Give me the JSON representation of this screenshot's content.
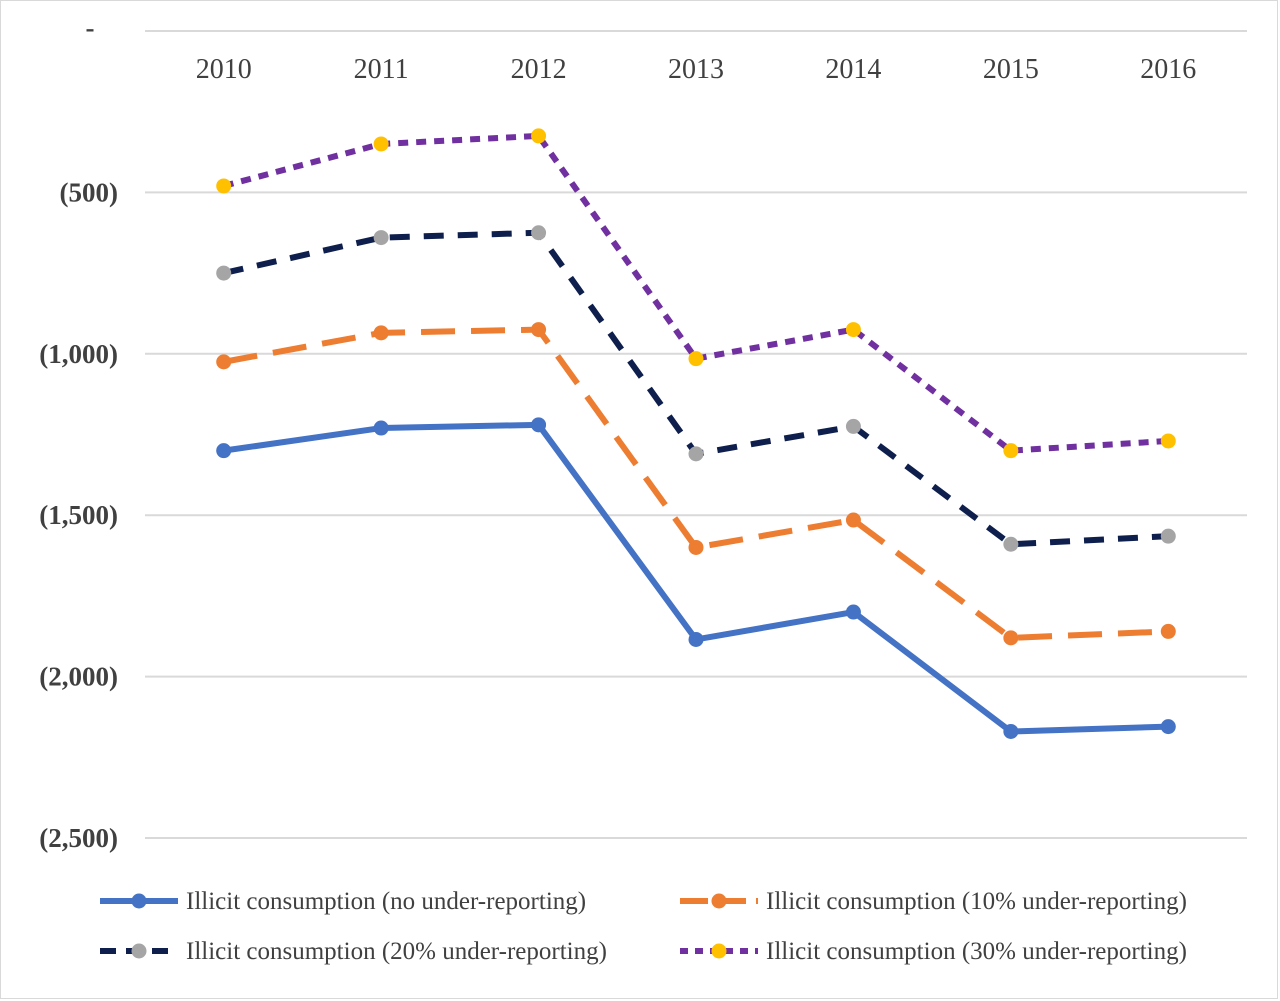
{
  "chart_data": {
    "type": "line",
    "categories": [
      "2010",
      "2011",
      "2012",
      "2013",
      "2014",
      "2015",
      "2016"
    ],
    "ylim": [
      -2500,
      0
    ],
    "yticks": [
      0,
      -500,
      -1000,
      -1500,
      -2000,
      -2500
    ],
    "ytick_labels": [
      "-",
      "(500)",
      "(1,000)",
      "(1,500)",
      "(2,000)",
      "(2,500)"
    ],
    "grid": true,
    "legend_position": "bottom",
    "series": [
      {
        "name": "Illicit consumption (no under-reporting)",
        "values": [
          -1300,
          -1230,
          -1220,
          -1885,
          -1800,
          -2170,
          -2155
        ],
        "color": "#4472c4",
        "marker_color": "#4472c4",
        "dash": "solid"
      },
      {
        "name": "Illicit consumption (10% under-reporting)",
        "values": [
          -1025,
          -935,
          -925,
          -1600,
          -1515,
          -1880,
          -1860
        ],
        "color": "#ed7d31",
        "marker_color": "#ed7d31",
        "dash": "long-dash"
      },
      {
        "name": "Illicit consumption (20% under-reporting)",
        "values": [
          -750,
          -640,
          -625,
          -1310,
          -1225,
          -1590,
          -1565
        ],
        "color": "#0e1f4d",
        "marker_color": "#a5a5a5",
        "dash": "dash"
      },
      {
        "name": "Illicit consumption (30% under-reporting)",
        "values": [
          -480,
          -350,
          -325,
          -1015,
          -925,
          -1300,
          -1270
        ],
        "color": "#7030a0",
        "marker_color": "#ffc000",
        "dash": "short-dash"
      }
    ]
  }
}
